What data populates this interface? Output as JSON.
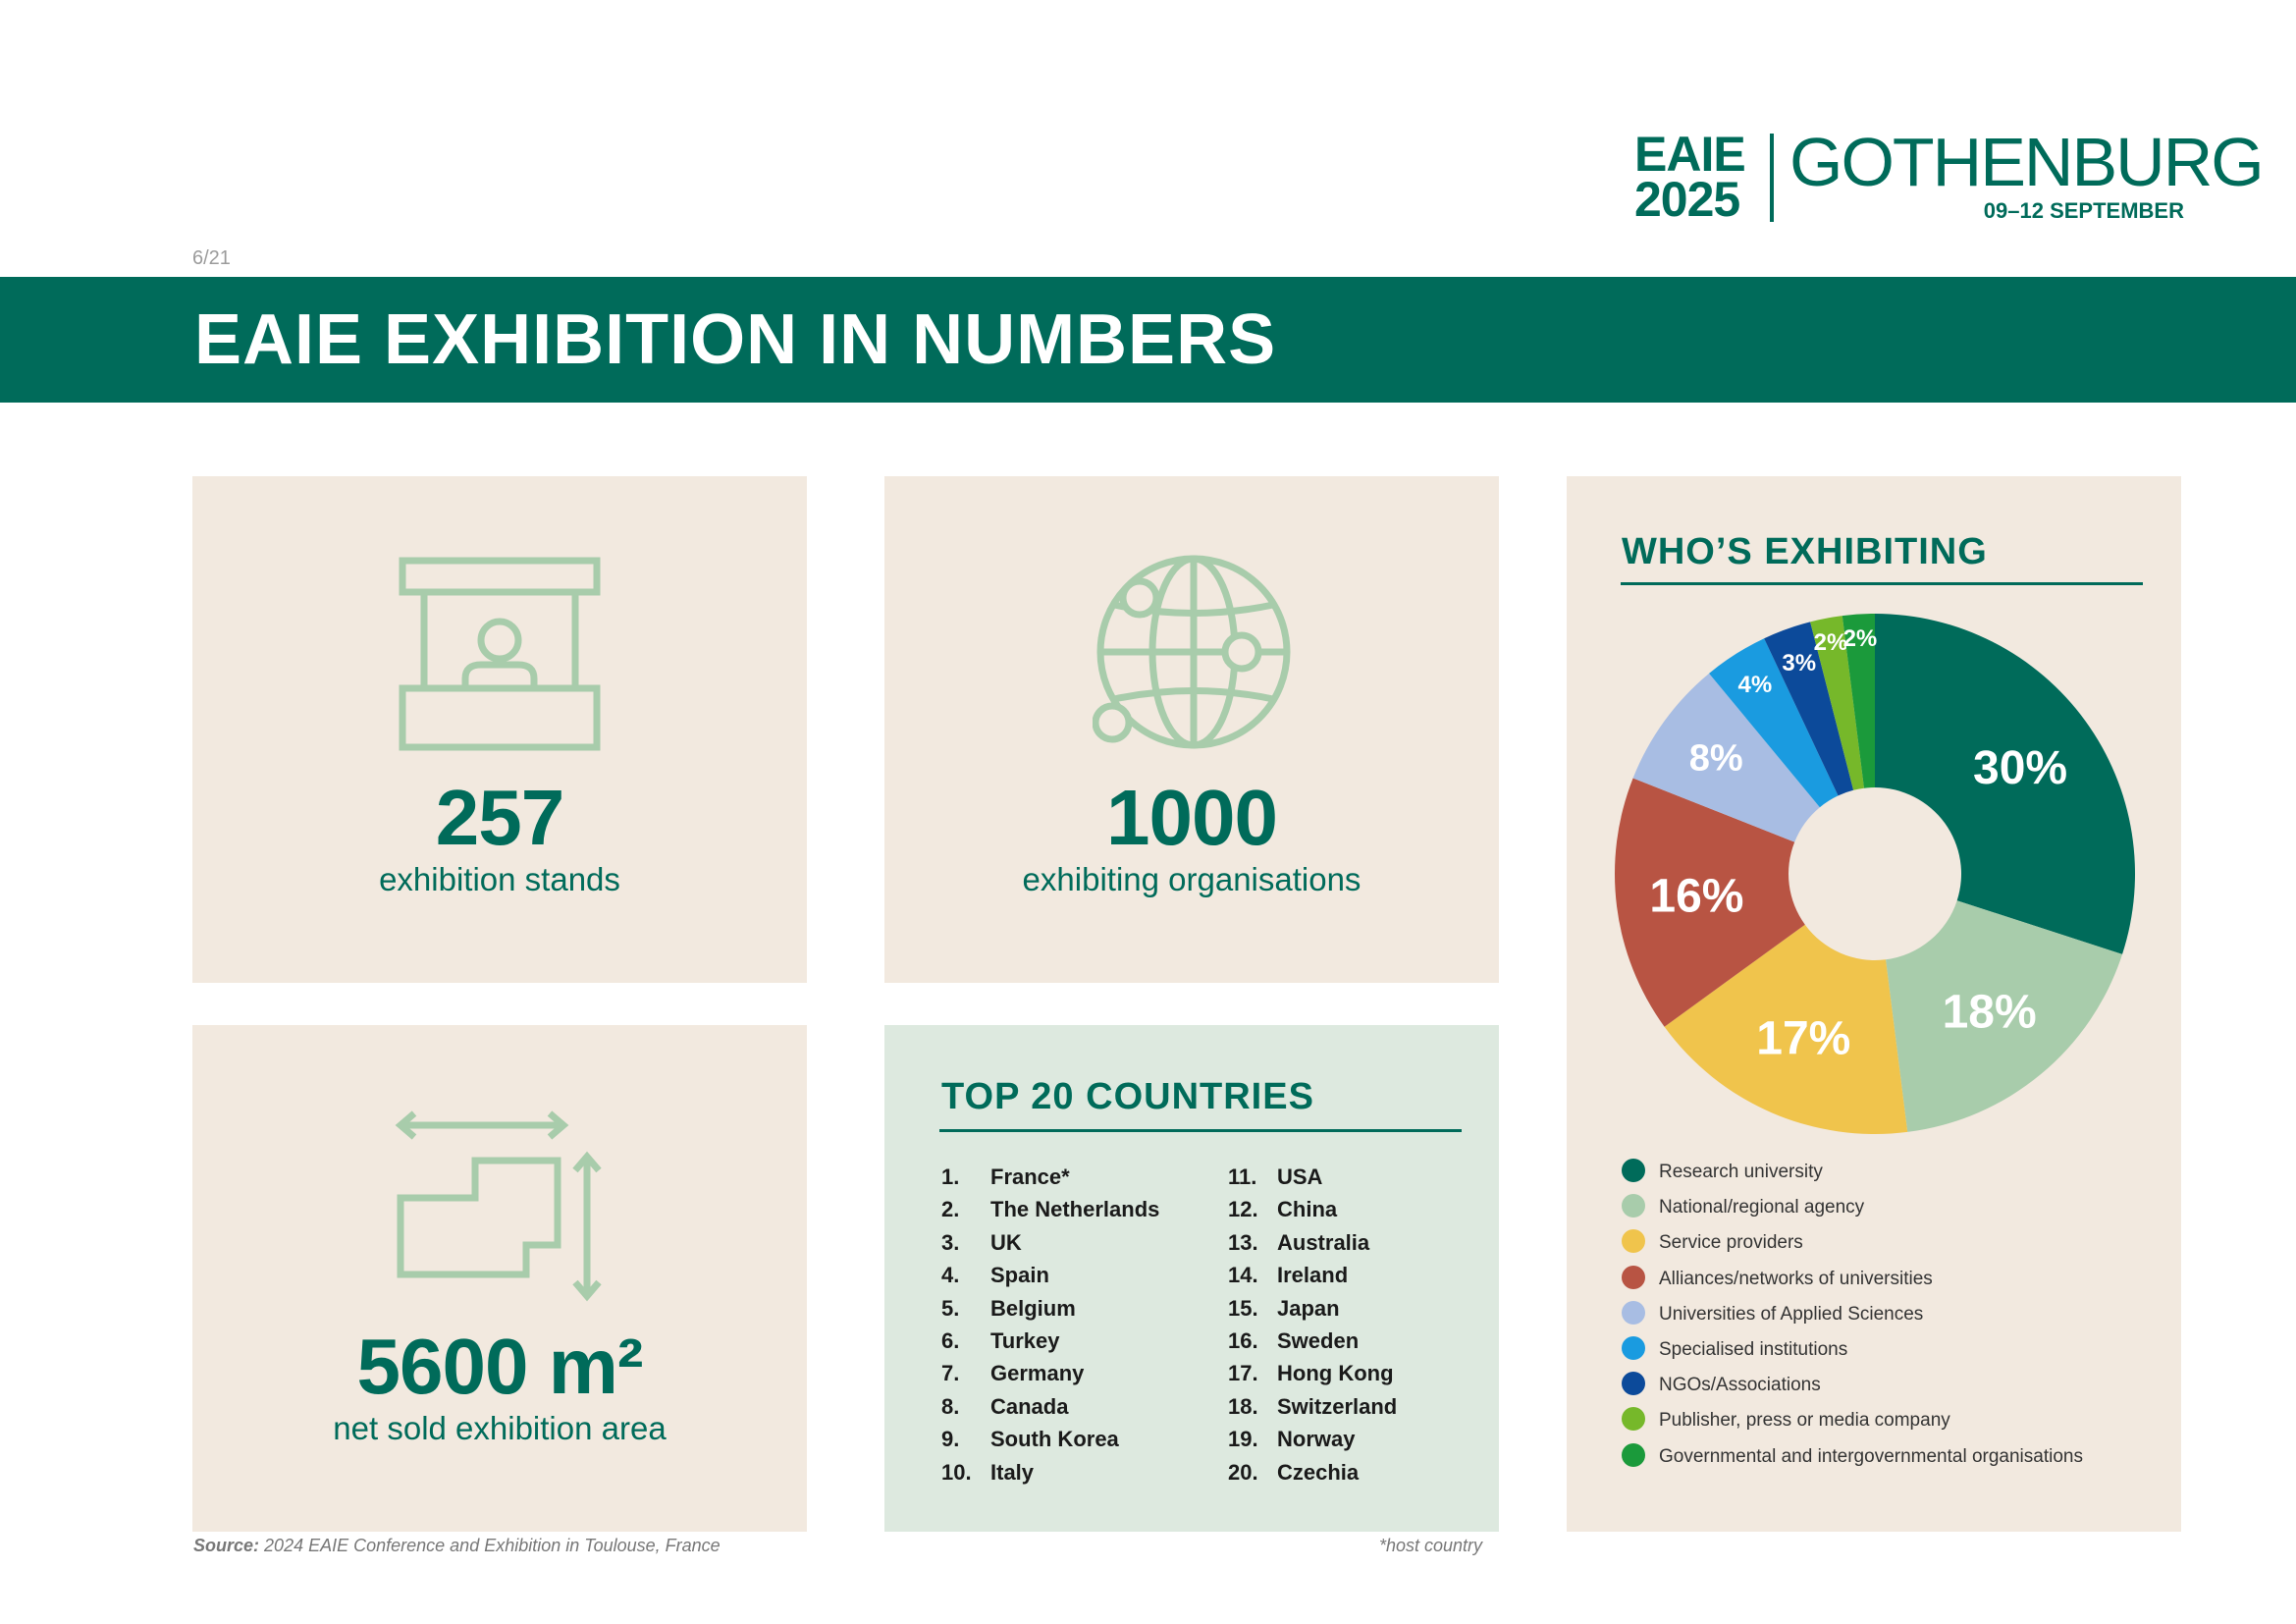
{
  "logo": {
    "event": "EAIE",
    "year": "2025",
    "city": "GOTHENBURG",
    "dates": "09–12 SEPTEMBER"
  },
  "page_number": "6/21",
  "title": "EAIE EXHIBITION IN NUMBERS",
  "stats": {
    "stands": {
      "value": "257",
      "label": "exhibition stands",
      "icon": "exhibition-booth-icon"
    },
    "organisations": {
      "value": "1000",
      "label": "exhibiting organisations",
      "icon": "globe-network-icon"
    },
    "area": {
      "value": "5600 m²",
      "label": "net sold exhibition area",
      "icon": "floor-area-icon"
    }
  },
  "top_countries": {
    "title": "TOP 20 COUNTRIES",
    "items": [
      {
        "rank": "1.",
        "name": "France*"
      },
      {
        "rank": "2.",
        "name": "The Netherlands"
      },
      {
        "rank": "3.",
        "name": "UK"
      },
      {
        "rank": "4.",
        "name": "Spain"
      },
      {
        "rank": "5.",
        "name": "Belgium"
      },
      {
        "rank": "6.",
        "name": "Turkey"
      },
      {
        "rank": "7.",
        "name": "Germany"
      },
      {
        "rank": "8.",
        "name": "Canada"
      },
      {
        "rank": "9.",
        "name": "South Korea"
      },
      {
        "rank": "10.",
        "name": "Italy"
      },
      {
        "rank": "11.",
        "name": "USA"
      },
      {
        "rank": "12.",
        "name": "China"
      },
      {
        "rank": "13.",
        "name": "Australia"
      },
      {
        "rank": "14.",
        "name": "Ireland"
      },
      {
        "rank": "15.",
        "name": "Japan"
      },
      {
        "rank": "16.",
        "name": "Sweden"
      },
      {
        "rank": "17.",
        "name": "Hong Kong"
      },
      {
        "rank": "18.",
        "name": "Switzerland"
      },
      {
        "rank": "19.",
        "name": "Norway"
      },
      {
        "rank": "20.",
        "name": "Czechia"
      }
    ],
    "note": "*host country"
  },
  "chart_data": {
    "type": "pie",
    "donut": true,
    "title": "WHO’S EXHIBITING",
    "slices": [
      {
        "label": "Research university",
        "value": 30,
        "display": "30%",
        "color": "#006b5a"
      },
      {
        "label": "National/regional agency",
        "value": 18,
        "display": "18%",
        "color": "#a8ccab"
      },
      {
        "label": "Service providers",
        "value": 17,
        "display": "17%",
        "color": "#f0c44c"
      },
      {
        "label": "Alliances/networks of universities",
        "value": 16,
        "display": "16%",
        "color": "#b85443"
      },
      {
        "label": "Universities of Applied Sciences",
        "value": 8,
        "display": "8%",
        "color": "#a8bde3"
      },
      {
        "label": "Specialised institutions",
        "value": 4,
        "display": "4%",
        "color": "#1a9be0"
      },
      {
        "label": "NGOs/Associations",
        "value": 3,
        "display": "3%",
        "color": "#0c4a9a"
      },
      {
        "label": "Publisher, press or media company",
        "value": 2,
        "display": "2%",
        "color": "#76b82a"
      },
      {
        "label": "Governmental and intergovernmental organisations",
        "value": 2,
        "display": "2%",
        "color": "#1b9a3b"
      }
    ],
    "legend_position": "bottom"
  },
  "source": {
    "label": "Source:",
    "text": "2024 EAIE Conference and Exhibition in Toulouse, France"
  }
}
